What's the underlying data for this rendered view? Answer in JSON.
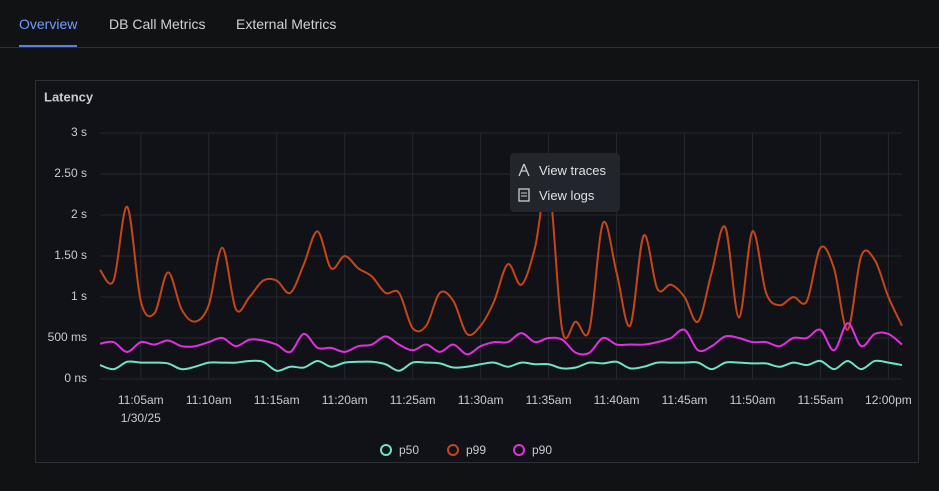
{
  "tabs": [
    "Overview",
    "DB Call Metrics",
    "External Metrics"
  ],
  "context_menu": {
    "items": [
      "View traces",
      "View logs"
    ]
  },
  "chart_data": {
    "type": "line",
    "title": "Latency",
    "x": [
      "11:02am",
      "11:03am",
      "11:04am",
      "11:05am",
      "11:06am",
      "11:07am",
      "11:08am",
      "11:09am",
      "11:10am",
      "11:11am",
      "11:12am",
      "11:13am",
      "11:14am",
      "11:15am",
      "11:16am",
      "11:17am",
      "11:18am",
      "11:19am",
      "11:20am",
      "11:21am",
      "11:22am",
      "11:23am",
      "11:24am",
      "11:25am",
      "11:26am",
      "11:27am",
      "11:28am",
      "11:29am",
      "11:30am",
      "11:31am",
      "11:32am",
      "11:33am",
      "11:34am",
      "11:35am",
      "11:36am",
      "11:37am",
      "11:38am",
      "11:39am",
      "11:40am",
      "11:41am",
      "11:42am",
      "11:43am",
      "11:44am",
      "11:45am",
      "11:46am",
      "11:47am",
      "11:48am",
      "11:49am",
      "11:50am",
      "11:51am",
      "11:52am",
      "11:53am",
      "11:54am",
      "11:55am",
      "11:56am",
      "11:57am",
      "11:58am",
      "11:59am",
      "12:00pm",
      "12:01pm"
    ],
    "x_date_label": "1/30/25",
    "xticks": [
      "11:05am",
      "11:10am",
      "11:15am",
      "11:20am",
      "11:25am",
      "11:30am",
      "11:35am",
      "11:40am",
      "11:45am",
      "11:50am",
      "11:55am",
      "12:00pm"
    ],
    "ylim": [
      0,
      3
    ],
    "yticks": [
      {
        "value": 0,
        "label": "0 ns"
      },
      {
        "value": 0.5,
        "label": "500 ms"
      },
      {
        "value": 1,
        "label": "1 s"
      },
      {
        "value": 1.5,
        "label": "1.50 s"
      },
      {
        "value": 2,
        "label": "2 s"
      },
      {
        "value": 2.5,
        "label": "2.50 s"
      },
      {
        "value": 3,
        "label": "3 s"
      }
    ],
    "grid": true,
    "series": [
      {
        "name": "p50",
        "color": "#6fe3c5",
        "values": [
          0.17,
          0.12,
          0.21,
          0.2,
          0.2,
          0.19,
          0.12,
          0.15,
          0.2,
          0.2,
          0.2,
          0.22,
          0.21,
          0.1,
          0.15,
          0.14,
          0.22,
          0.15,
          0.2,
          0.21,
          0.21,
          0.18,
          0.1,
          0.2,
          0.2,
          0.19,
          0.14,
          0.15,
          0.18,
          0.2,
          0.15,
          0.2,
          0.18,
          0.18,
          0.13,
          0.14,
          0.2,
          0.19,
          0.21,
          0.13,
          0.15,
          0.2,
          0.2,
          0.2,
          0.2,
          0.12,
          0.2,
          0.2,
          0.19,
          0.19,
          0.15,
          0.2,
          0.17,
          0.22,
          0.12,
          0.22,
          0.12,
          0.22,
          0.2,
          0.17
        ]
      },
      {
        "name": "p99",
        "color": "#c4461a",
        "values": [
          1.33,
          1.2,
          2.1,
          0.95,
          0.8,
          1.3,
          0.85,
          0.7,
          0.9,
          1.6,
          0.85,
          1.0,
          1.2,
          1.2,
          1.05,
          1.4,
          1.8,
          1.35,
          1.5,
          1.35,
          1.25,
          1.05,
          1.05,
          0.62,
          0.65,
          1.05,
          0.95,
          0.55,
          0.65,
          0.95,
          1.4,
          1.15,
          1.6,
          2.4,
          0.6,
          0.7,
          0.6,
          1.9,
          1.3,
          0.65,
          1.75,
          1.1,
          1.15,
          1.0,
          0.7,
          1.3,
          1.85,
          0.75,
          1.8,
          1.05,
          0.9,
          1.0,
          0.95,
          1.6,
          1.35,
          0.6,
          1.5,
          1.45,
          1.0,
          0.65
        ]
      },
      {
        "name": "p90",
        "color": "#e030e0",
        "values": [
          0.43,
          0.45,
          0.33,
          0.45,
          0.42,
          0.47,
          0.4,
          0.4,
          0.45,
          0.5,
          0.4,
          0.48,
          0.47,
          0.42,
          0.33,
          0.55,
          0.38,
          0.38,
          0.33,
          0.4,
          0.42,
          0.52,
          0.42,
          0.35,
          0.42,
          0.33,
          0.42,
          0.3,
          0.4,
          0.45,
          0.45,
          0.56,
          0.45,
          0.5,
          0.48,
          0.32,
          0.32,
          0.5,
          0.42,
          0.42,
          0.42,
          0.45,
          0.5,
          0.6,
          0.35,
          0.4,
          0.52,
          0.5,
          0.45,
          0.45,
          0.4,
          0.5,
          0.5,
          0.6,
          0.35,
          0.68,
          0.4,
          0.55,
          0.55,
          0.42
        ]
      }
    ]
  }
}
